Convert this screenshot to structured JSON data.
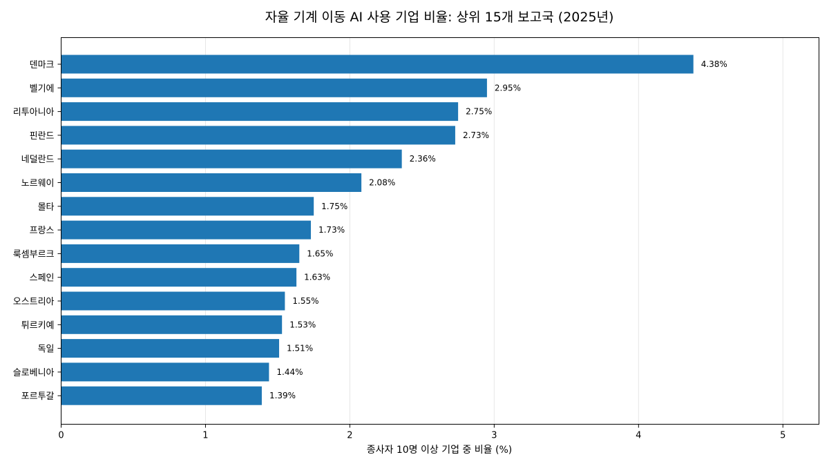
{
  "chart_data": {
    "type": "bar",
    "orientation": "horizontal",
    "title": "자율 기계 이동 AI 사용 기업 비율: 상위 15개 보고국 (2025년)",
    "xlabel": "종사자 10명 이상 기업 중 비율 (%)",
    "ylabel": "",
    "xlim": [
      0,
      5.25
    ],
    "xticks": [
      0,
      1,
      2,
      3,
      4,
      5
    ],
    "grid": true,
    "bar_color": "#1f77b4",
    "value_suffix": "%",
    "categories": [
      "덴마크",
      "벨기에",
      "리투아니아",
      "핀란드",
      "네덜란드",
      "노르웨이",
      "몰타",
      "프랑스",
      "룩셈부르크",
      "스페인",
      "오스트리아",
      "튀르키예",
      "독일",
      "슬로베니아",
      "포르투갈"
    ],
    "values": [
      4.38,
      2.95,
      2.75,
      2.73,
      2.36,
      2.08,
      1.75,
      1.73,
      1.65,
      1.63,
      1.55,
      1.53,
      1.51,
      1.44,
      1.39
    ],
    "value_labels": [
      "4.38%",
      "2.95%",
      "2.75%",
      "2.73%",
      "2.36%",
      "2.08%",
      "1.75%",
      "1.73%",
      "1.65%",
      "1.63%",
      "1.55%",
      "1.53%",
      "1.51%",
      "1.44%",
      "1.39%"
    ]
  }
}
